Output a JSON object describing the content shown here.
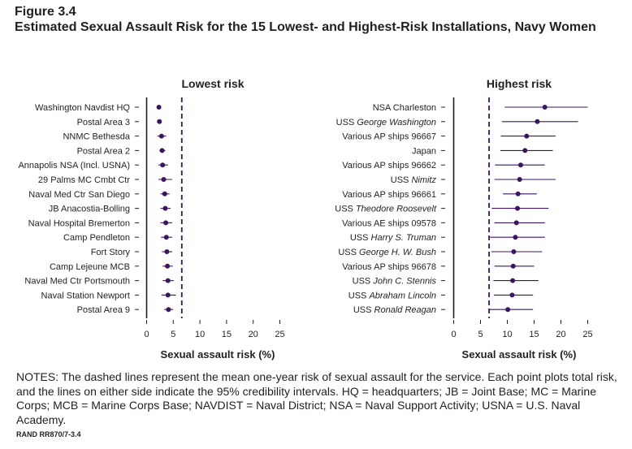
{
  "figure_label": "Figure 3.4",
  "figure_title": "Estimated Sexual Assault Risk for the 15 Lowest- and Highest-Risk Installations, Navy Women",
  "notes": "NOTES: The dashed lines represent the mean one-year risk of sexual assault for the service. Each point plots total risk, and the lines on either side indicate the 95% credibility intervals. HQ = headquarters; JB = Joint Base; MC = Marine Corps; MCB = Marine Corps Base; NAVDIST = Naval District; NSA = Naval Support Activity; USNA = U.S. Naval Academy.",
  "credit": "RAND RR870/7-3.4",
  "colors": {
    "point": "#3d1460",
    "mean_line": "#3d1460",
    "axis": "#231f20"
  },
  "chart_data": [
    {
      "type": "scatter",
      "title": "Lowest risk",
      "xlabel": "Sexual assault risk (%)",
      "xlim": [
        0,
        25
      ],
      "xticks": [
        0,
        5,
        10,
        15,
        20,
        25
      ],
      "grid": false,
      "mean_risk": 6.6,
      "categories": [
        {
          "text": "Washington Navdist HQ"
        },
        {
          "text": "Postal Area 3"
        },
        {
          "text": "NNMC Bethesda"
        },
        {
          "text": "Postal Area 2"
        },
        {
          "text": "Annapolis NSA (Incl. USNA)"
        },
        {
          "text": "29 Palms MC Cmbt Ctr"
        },
        {
          "text": "Naval Med Ctr San Diego"
        },
        {
          "text": "JB Anacostia-Bolling"
        },
        {
          "text": "Naval Hospital Bremerton"
        },
        {
          "text": "Camp Pendleton"
        },
        {
          "text": "Fort Story"
        },
        {
          "text": "Camp Lejeune MCB"
        },
        {
          "text": "Naval Med Ctr Portsmouth"
        },
        {
          "text": "Naval Station Newport"
        },
        {
          "text": "Postal Area 9"
        }
      ],
      "values": [
        2.3,
        2.4,
        2.8,
        2.9,
        3.0,
        3.2,
        3.4,
        3.5,
        3.6,
        3.7,
        3.8,
        3.9,
        4.0,
        4.0,
        4.1
      ],
      "lower": [
        2.0,
        2.1,
        2.0,
        2.4,
        2.2,
        2.2,
        2.6,
        2.6,
        2.6,
        2.7,
        2.9,
        3.0,
        3.0,
        2.8,
        3.3
      ],
      "upper": [
        2.7,
        2.7,
        3.7,
        3.5,
        4.0,
        4.8,
        4.3,
        4.5,
        4.8,
        4.8,
        4.8,
        4.9,
        5.1,
        5.5,
        5.0
      ]
    },
    {
      "type": "scatter",
      "title": "Highest risk",
      "xlabel": "Sexual assault risk (%)",
      "xlim": [
        0,
        25
      ],
      "xticks": [
        0,
        5,
        10,
        15,
        20,
        25
      ],
      "grid": false,
      "mean_risk": 6.6,
      "categories": [
        {
          "text": "NSA Charleston"
        },
        {
          "prefix": "USS ",
          "italic": "George Washington"
        },
        {
          "text": "Various AP ships 96667"
        },
        {
          "text": "Japan"
        },
        {
          "text": "Various AP ships 96662"
        },
        {
          "prefix": "USS ",
          "italic": "Nimitz"
        },
        {
          "text": "Various AP ships 96661"
        },
        {
          "prefix": "USS ",
          "italic": "Theodore Roosevelt"
        },
        {
          "text": "Various AE ships 09578"
        },
        {
          "prefix": "USS ",
          "italic": "Harry S. Truman"
        },
        {
          "prefix": "USS ",
          "italic": "George H. W. Bush"
        },
        {
          "text": "Various AP ships 96678"
        },
        {
          "prefix": "USS ",
          "italic": "John C. Stennis"
        },
        {
          "prefix": "USS ",
          "italic": "Abraham Lincoln"
        },
        {
          "prefix": "USS ",
          "italic": "Ronald Reagan"
        }
      ],
      "values": [
        17.0,
        15.6,
        13.6,
        13.3,
        12.5,
        12.3,
        12.0,
        11.9,
        11.7,
        11.5,
        11.2,
        11.1,
        11.0,
        10.9,
        10.1
      ],
      "lower": [
        9.5,
        9.0,
        8.8,
        8.7,
        7.7,
        7.6,
        9.2,
        7.1,
        7.6,
        6.8,
        7.0,
        7.6,
        7.4,
        7.5,
        6.7
      ],
      "upper": [
        25.0,
        23.2,
        19.0,
        18.5,
        17.0,
        19.0,
        15.5,
        17.7,
        17.0,
        17.0,
        16.5,
        15.0,
        15.8,
        14.8,
        14.8
      ]
    }
  ]
}
